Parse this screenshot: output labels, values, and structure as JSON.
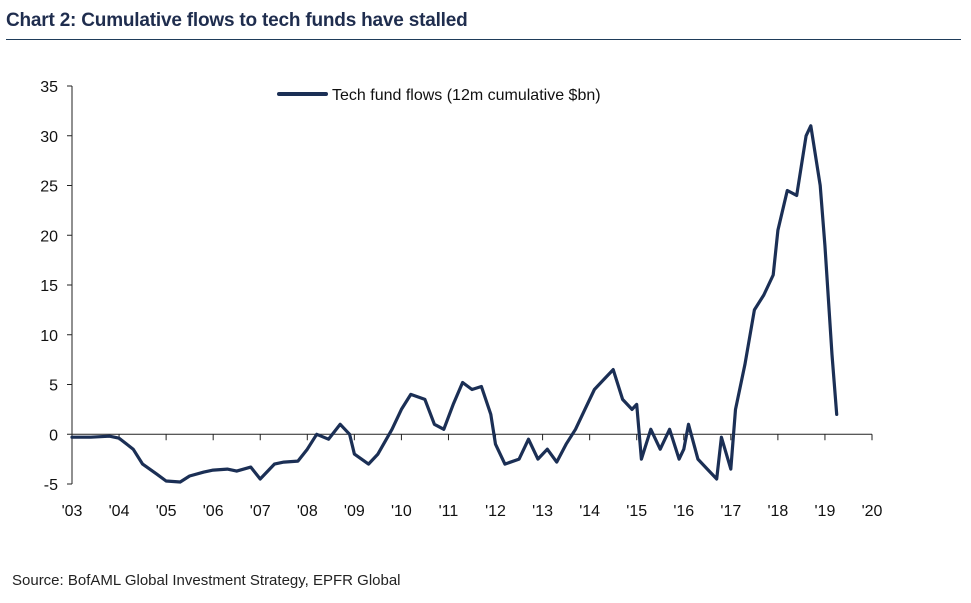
{
  "title": "Chart 2: Cumulative flows to tech funds have stalled",
  "source": "Source: BofAML Global Investment Strategy, EPFR Global",
  "colors": {
    "series": "#1b2f55",
    "title": "#1f2d4e",
    "rule": "#1f3c5a"
  },
  "chart_data": {
    "type": "line",
    "title": "Chart 2: Cumulative flows to tech funds have stalled",
    "xlabel": "",
    "ylabel": "",
    "x_range": [
      2003,
      2020
    ],
    "ylim": [
      -5,
      35
    ],
    "y_ticks": [
      -5,
      0,
      5,
      10,
      15,
      20,
      25,
      30,
      35
    ],
    "y_tick_labels": [
      "-5",
      "0",
      "5",
      "10",
      "15",
      "20",
      "25",
      "30",
      "35"
    ],
    "x_ticks": [
      2003,
      2004,
      2005,
      2006,
      2007,
      2008,
      2009,
      2010,
      2011,
      2012,
      2013,
      2014,
      2015,
      2016,
      2017,
      2018,
      2019,
      2020
    ],
    "x_tick_labels": [
      "'03",
      "'04",
      "'05",
      "'06",
      "'07",
      "'08",
      "'09",
      "'10",
      "'11",
      "'12",
      "'13",
      "'14",
      "'15",
      "'16",
      "'17",
      "'18",
      "'19",
      "'20"
    ],
    "legend_position": "top-center",
    "series": [
      {
        "name": "Tech fund flows (12m cumulative $bn)",
        "x": [
          2003.0,
          2003.4,
          2003.8,
          2004.0,
          2004.3,
          2004.5,
          2004.8,
          2005.0,
          2005.3,
          2005.5,
          2005.8,
          2006.0,
          2006.3,
          2006.5,
          2006.8,
          2007.0,
          2007.3,
          2007.5,
          2007.8,
          2008.0,
          2008.2,
          2008.45,
          2008.7,
          2008.9,
          2009.0,
          2009.3,
          2009.5,
          2009.8,
          2010.0,
          2010.2,
          2010.5,
          2010.7,
          2010.9,
          2011.1,
          2011.3,
          2011.5,
          2011.7,
          2011.9,
          2012.0,
          2012.2,
          2012.5,
          2012.7,
          2012.9,
          2013.1,
          2013.3,
          2013.5,
          2013.7,
          2013.9,
          2014.1,
          2014.3,
          2014.5,
          2014.7,
          2014.9,
          2015.0,
          2015.1,
          2015.3,
          2015.5,
          2015.7,
          2015.9,
          2016.0,
          2016.1,
          2016.3,
          2016.5,
          2016.7,
          2016.8,
          2017.0,
          2017.1,
          2017.3,
          2017.5,
          2017.7,
          2017.9,
          2018.0,
          2018.2,
          2018.4,
          2018.6,
          2018.7,
          2018.9,
          2019.0,
          2019.15,
          2019.25
        ],
        "values": [
          -0.3,
          -0.3,
          -0.2,
          -0.4,
          -1.5,
          -3.0,
          -4.0,
          -4.7,
          -4.8,
          -4.2,
          -3.8,
          -3.6,
          -3.5,
          -3.7,
          -3.3,
          -4.5,
          -3.0,
          -2.8,
          -2.7,
          -1.5,
          0.0,
          -0.5,
          1.0,
          0.0,
          -2.0,
          -3.0,
          -2.0,
          0.5,
          2.5,
          4.0,
          3.5,
          1.0,
          0.5,
          3.0,
          5.2,
          4.5,
          4.8,
          2.0,
          -1.0,
          -3.0,
          -2.5,
          -0.5,
          -2.5,
          -1.5,
          -2.8,
          -1.0,
          0.5,
          2.5,
          4.5,
          5.5,
          6.5,
          3.5,
          2.5,
          3.0,
          -2.5,
          0.5,
          -1.5,
          0.5,
          -2.5,
          -1.5,
          1.0,
          -2.5,
          -3.5,
          -4.5,
          -0.3,
          -3.5,
          2.5,
          7.0,
          12.5,
          14.0,
          16.0,
          20.5,
          24.5,
          24.0,
          30.0,
          31.0,
          25.0,
          19.0,
          8.0,
          2.0
        ]
      }
    ]
  }
}
